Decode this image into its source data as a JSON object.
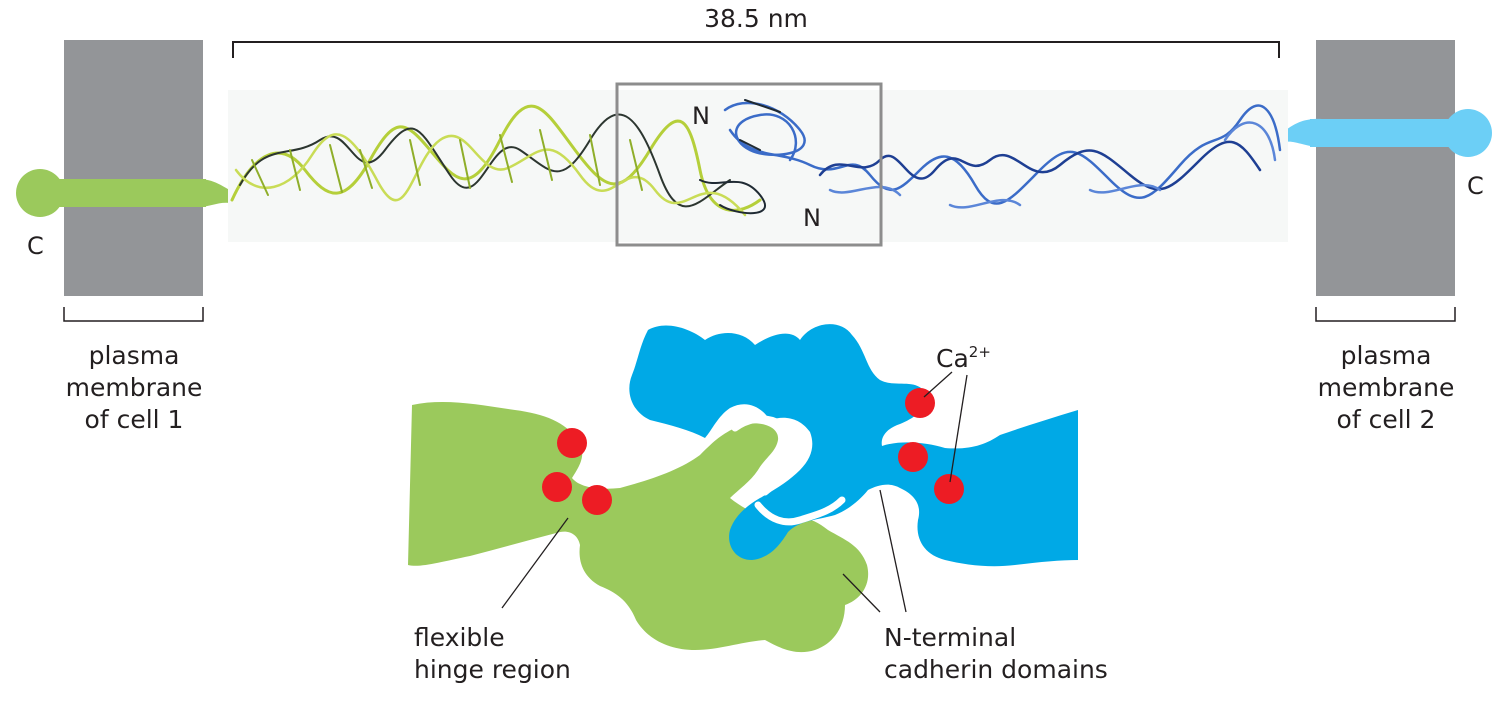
{
  "measure": {
    "length": "38.5 nm"
  },
  "membrane_left": {
    "line1": "plasma",
    "line2": "membrane",
    "line3": "of cell 1",
    "terminus": "C"
  },
  "membrane_right": {
    "line1": "plasma",
    "line2": "membrane",
    "line3": "of cell 2",
    "terminus": "C"
  },
  "structure": {
    "n_top": "N",
    "n_bottom": "N"
  },
  "labels": {
    "calcium_base": "Ca",
    "calcium_charge": "2+",
    "hinge_line1": "flexible",
    "hinge_line2": "hinge region",
    "domains_line1": "N-terminal",
    "domains_line2": "cadherin domains"
  },
  "colors": {
    "membrane": "#939598",
    "cadherin_cell1": "#9bc95c",
    "cadherin_cell2": "#00a9e6",
    "tail_cell2": "#6ccff6",
    "calcium": "#ed1c24",
    "ribbon_green": "#b5cf3a",
    "ribbon_blue": "#3b6cc8",
    "ribbon_dark": "#1f2a33",
    "box_outline": "#8d8d8d"
  }
}
